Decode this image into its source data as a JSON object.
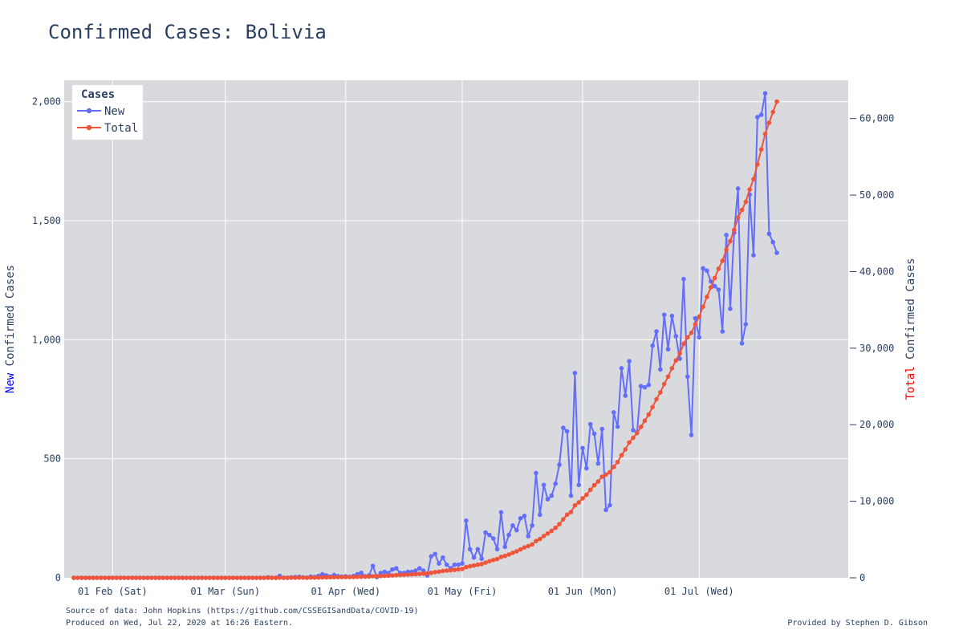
{
  "page": {
    "title": "Confirmed Cases: Bolivia",
    "source": "Source of data: John Hopkins (https://github.com/CSSEGISandData/COVID-19)",
    "produced": "Produced on Wed, Jul 22, 2020 at 16:26 Eastern.",
    "credit": "Provided by Stephen D. Gibson"
  },
  "colors": {
    "new": "#636efa",
    "total": "#ef553b",
    "plot_bg": "#d9dadd",
    "grid": "#ffffff",
    "text": "#2a3f5f",
    "new_highlight": "#0000ff",
    "total_highlight": "#ff0000"
  },
  "chart_data": {
    "type": "line",
    "title": "Confirmed Cases: Bolivia",
    "x_start_date": "2020-01-22",
    "x_ticks": [
      "01 Feb (Sat)",
      "01 Mar (Sun)",
      "01 Apr (Wed)",
      "01 May (Fri)",
      "01 Jun (Mon)",
      "01 Jul (Wed)"
    ],
    "y_left": {
      "title_highlight": "New",
      "title_rest": " Confirmed Cases",
      "range": [
        0,
        2090
      ],
      "ticks": [
        0,
        500,
        1000,
        1500,
        2000
      ],
      "tick_labels": [
        "0",
        "500",
        "1,000",
        "1,500",
        "2,000"
      ]
    },
    "y_right": {
      "title_highlight": "Total",
      "title_rest": " Confirmed Cases",
      "range": [
        0,
        65000
      ],
      "ticks": [
        0,
        10000,
        20000,
        30000,
        40000,
        50000,
        60000
      ],
      "tick_labels": [
        "0",
        "10,000",
        "20,000",
        "30,000",
        "40,000",
        "50,000",
        "60,000"
      ]
    },
    "legend": {
      "title": "Cases",
      "position": "top-left"
    },
    "series": [
      {
        "name": "New",
        "axis": "left",
        "values": [
          0,
          0,
          0,
          0,
          0,
          0,
          0,
          0,
          0,
          0,
          0,
          0,
          0,
          0,
          0,
          0,
          0,
          0,
          0,
          0,
          0,
          0,
          0,
          0,
          0,
          0,
          0,
          0,
          0,
          0,
          0,
          0,
          0,
          0,
          0,
          0,
          0,
          0,
          0,
          0,
          0,
          0,
          0,
          0,
          0,
          0,
          0,
          0,
          0,
          0,
          2,
          0,
          0,
          8,
          0,
          0,
          2,
          3,
          4,
          2,
          0,
          5,
          3,
          8,
          15,
          10,
          5,
          12,
          7,
          5,
          6,
          4,
          8,
          15,
          21,
          6,
          10,
          50,
          3,
          20,
          25,
          20,
          35,
          40,
          20,
          20,
          25,
          25,
          30,
          40,
          30,
          10,
          90,
          100,
          60,
          85,
          55,
          40,
          55,
          55,
          60,
          240,
          120,
          85,
          120,
          80,
          190,
          180,
          165,
          120,
          275,
          130,
          180,
          220,
          200,
          250,
          260,
          175,
          220,
          440,
          265,
          390,
          330,
          345,
          395,
          475,
          630,
          615,
          345,
          860,
          390,
          545,
          460,
          645,
          605,
          480,
          625,
          285,
          305,
          695,
          635,
          880,
          765,
          910,
          620,
          610,
          805,
          800,
          810,
          975,
          1035,
          875,
          1105,
          960,
          1100,
          1015,
          920,
          1255,
          845,
          600,
          1090,
          1010,
          1300,
          1290,
          1245,
          1225,
          1210,
          1035,
          1440,
          1130,
          1450,
          1635,
          985,
          1065,
          1610,
          1355,
          1935,
          1945,
          2035,
          1445,
          1410,
          1365
        ]
      },
      {
        "name": "Total",
        "axis": "right",
        "values": [
          0,
          0,
          0,
          0,
          0,
          0,
          0,
          0,
          0,
          0,
          0,
          0,
          0,
          0,
          0,
          0,
          0,
          0,
          0,
          0,
          0,
          0,
          0,
          0,
          0,
          0,
          0,
          0,
          0,
          0,
          0,
          0,
          0,
          0,
          0,
          0,
          0,
          0,
          0,
          0,
          0,
          0,
          0,
          0,
          0,
          0,
          0,
          0,
          0,
          0,
          2,
          2,
          2,
          10,
          10,
          10,
          12,
          15,
          19,
          21,
          21,
          26,
          29,
          37,
          52,
          62,
          67,
          79,
          86,
          91,
          97,
          101,
          109,
          124,
          145,
          151,
          161,
          211,
          214,
          234,
          259,
          279,
          314,
          354,
          374,
          394,
          419,
          444,
          474,
          514,
          544,
          554,
          644,
          744,
          804,
          889,
          944,
          984,
          1039,
          1094,
          1154,
          1394,
          1514,
          1599,
          1719,
          1799,
          1989,
          2169,
          2334,
          2454,
          2729,
          2859,
          3039,
          3259,
          3459,
          3709,
          3969,
          4144,
          4364,
          4804,
          5069,
          5459,
          5789,
          6134,
          6529,
          7004,
          7634,
          8249,
          8594,
          9454,
          9844,
          10389,
          10849,
          11494,
          12099,
          12579,
          13204,
          13489,
          13794,
          14489,
          15124,
          16004,
          16769,
          17679,
          18299,
          18909,
          19714,
          20514,
          21324,
          22299,
          23334,
          24209,
          25314,
          26274,
          27374,
          28389,
          29309,
          30564,
          31409,
          32009,
          33099,
          34109,
          35409,
          36699,
          37944,
          39169,
          40379,
          41414,
          42854,
          43984,
          45434,
          47069,
          48054,
          49119,
          50729,
          52084,
          54019,
          55964,
          57999,
          59444,
          60854,
          62219
        ]
      }
    ]
  }
}
